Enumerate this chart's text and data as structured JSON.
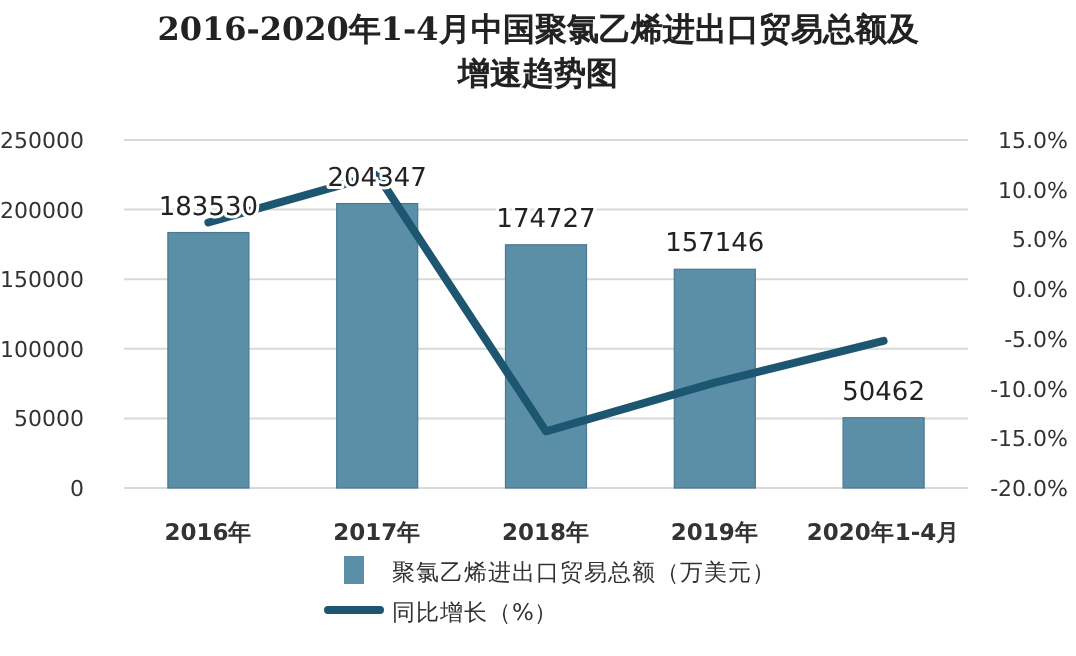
{
  "chart_data": {
    "type": "bar",
    "title": "2016-2020年1-4月中国聚氯乙烯进出口贸易总额及增速趋势图",
    "categories": [
      "2016年",
      "2017年",
      "2018年",
      "2019年",
      "2020年1-4月"
    ],
    "series": [
      {
        "name": "聚氯乙烯进出口贸易总额（万美元）",
        "color": "#5b8fa8",
        "values": [
          183530,
          204347,
          174727,
          157146,
          50462
        ],
        "value_labels": [
          "183530",
          "204347",
          "174727",
          "157146",
          "50462"
        ]
      },
      {
        "name": "同比增长（%）",
        "type": "line",
        "axis": "y2",
        "color": "#1d5670",
        "values": [
          6.7,
          11.5,
          -14.3,
          -9.4,
          -5.2
        ]
      }
    ],
    "ylim": [
      0,
      250000
    ],
    "yticks": [
      0,
      50000,
      100000,
      150000,
      200000,
      250000
    ],
    "y2lim": [
      -20,
      15
    ],
    "y2ticks": [
      {
        "value": -20,
        "label": "-20.0%"
      },
      {
        "value": -15,
        "label": "-15.0%"
      },
      {
        "value": -10,
        "label": "-10.0%"
      },
      {
        "value": -5,
        "label": "-5.0%"
      },
      {
        "value": 0,
        "label": "0.0%"
      },
      {
        "value": 5,
        "label": "5.0%"
      },
      {
        "value": 10,
        "label": "10.0%"
      },
      {
        "value": 15,
        "label": "15.0%"
      }
    ],
    "grid": "y",
    "legend": "bottom",
    "marker": "none"
  }
}
